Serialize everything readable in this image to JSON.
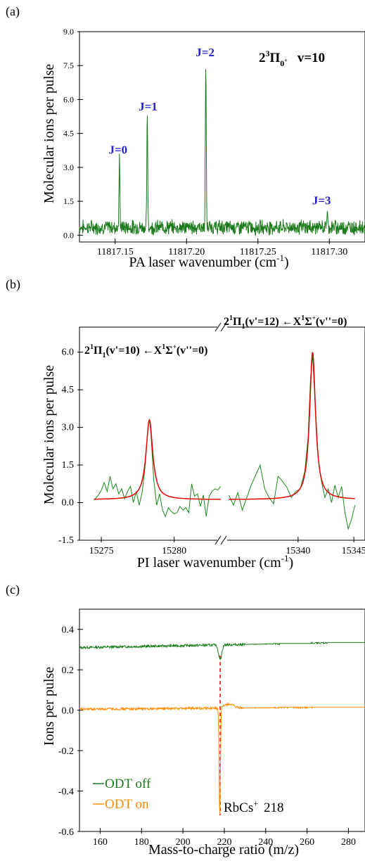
{
  "chart_data": [
    {
      "panel": "(a)",
      "type": "line",
      "annotation": {
        "main": "2",
        "sup": "3",
        "letter": "Π",
        "sub": "0",
        "subsup": "+",
        "tail": "v=10"
      },
      "xlabel": "PA laser wavenumber (cm",
      "xlabel_sup": "-1",
      "xlabel_end": ")",
      "ylabel": "Molecular ions per pulse",
      "xlim": [
        11817.125,
        11817.325
      ],
      "ylim": [
        -0.3,
        9.0
      ],
      "xticks": [
        "11817.15",
        "11817.20",
        "11817.25",
        "11817.30"
      ],
      "xtick_values": [
        11817.15,
        11817.2,
        11817.25,
        11817.3
      ],
      "yticks": [
        "0.0",
        "1.5",
        "3.0",
        "4.5",
        "6.0",
        "7.5",
        "9.0"
      ],
      "ytick_values": [
        0,
        1.5,
        3.0,
        4.5,
        6.0,
        7.5,
        9.0
      ],
      "baseline": 0.35,
      "peaks": [
        {
          "label": "J=0",
          "x": 11817.153,
          "height": 3.3
        },
        {
          "label": "J=1",
          "x": 11817.1725,
          "height": 5.2
        },
        {
          "label": "J=2",
          "x": 11817.2135,
          "height": 7.6
        },
        {
          "label": "J=3",
          "x": 11817.2985,
          "height": 1.05
        }
      ],
      "colors": {
        "trace": "#1a7a1a",
        "label": "#2222cc"
      }
    },
    {
      "panel": "(b)",
      "type": "line",
      "xlabel": "PI laser wavenumber (cm",
      "xlabel_sup": "-1",
      "xlabel_end": ")",
      "ylabel": "Molecular ions per pulse",
      "ylim": [
        -1.5,
        7.0
      ],
      "yticks": [
        "-1.5",
        "0.0",
        "1.5",
        "3.0",
        "4.5",
        "6.0"
      ],
      "ytick_values": [
        -1.5,
        0,
        1.5,
        3.0,
        4.5,
        6.0
      ],
      "segments": [
        {
          "xlim": [
            15273.5,
            15283.3
          ],
          "xticks": [
            "15275",
            "15280"
          ],
          "xtick_values": [
            15275,
            15280
          ],
          "peak_center": 15278.3,
          "peak_height": 3.3,
          "width": 0.28,
          "label": {
            "a": "2",
            "b": "1",
            "c": "Π",
            "d": "1",
            "e": "(v'=10) ←X",
            "f": "1",
            "g": "Σ",
            "h": "+",
            "i": "(v''=0)"
          },
          "data": [
            [
              15274.5,
              0.1
            ],
            [
              15274.8,
              0.3
            ],
            [
              15275.0,
              0.5
            ],
            [
              15275.2,
              0.8
            ],
            [
              15275.4,
              0.45
            ],
            [
              15275.6,
              1.05
            ],
            [
              15275.8,
              0.55
            ],
            [
              15276.0,
              0.75
            ],
            [
              15276.2,
              0.35
            ],
            [
              15276.4,
              0.55
            ],
            [
              15276.6,
              0.15
            ],
            [
              15276.8,
              0.45
            ],
            [
              15277.0,
              0.65
            ],
            [
              15277.2,
              0.0
            ],
            [
              15277.4,
              0.45
            ],
            [
              15277.6,
              -0.1
            ],
            [
              15277.8,
              0.4
            ],
            [
              15278.0,
              1.4
            ],
            [
              15278.2,
              3.0
            ],
            [
              15278.3,
              3.3
            ],
            [
              15278.4,
              2.8
            ],
            [
              15278.6,
              0.9
            ],
            [
              15278.8,
              -0.1
            ],
            [
              15279.0,
              0.35
            ],
            [
              15279.2,
              -0.3
            ],
            [
              15279.4,
              -0.55
            ],
            [
              15279.6,
              -0.2
            ],
            [
              15279.8,
              -0.35
            ],
            [
              15280.0,
              -0.45
            ],
            [
              15280.2,
              -0.4
            ],
            [
              15280.4,
              -0.15
            ],
            [
              15280.6,
              -0.3
            ],
            [
              15280.8,
              -0.2
            ],
            [
              15281.0,
              -0.4
            ],
            [
              15281.2,
              0.75
            ],
            [
              15281.4,
              0.25
            ],
            [
              15281.6,
              0.35
            ],
            [
              15281.8,
              -0.15
            ],
            [
              15282.0,
              0.3
            ],
            [
              15282.2,
              -0.55
            ],
            [
              15282.4,
              0.25
            ],
            [
              15282.6,
              0.45
            ],
            [
              15282.8,
              0.55
            ],
            [
              15283.0,
              0.5
            ],
            [
              15283.2,
              0.65
            ]
          ]
        },
        {
          "xlim": [
            15333.2,
            15346.0
          ],
          "xticks": [
            "15340",
            "15345"
          ],
          "xtick_values": [
            15340,
            15345
          ],
          "peak_center": 15341.3,
          "peak_height": 6.0,
          "width": 0.32,
          "label": {
            "a": "2",
            "b": "1",
            "c": "Π",
            "d": "1",
            "e": "(v'=12) ←X",
            "f": "1",
            "g": "Σ",
            "h": "+",
            "i": "(v''=0)"
          },
          "data": [
            [
              15333.8,
              0.3
            ],
            [
              15334.2,
              -0.1
            ],
            [
              15334.6,
              0.4
            ],
            [
              15335.0,
              -0.3
            ],
            [
              15335.4,
              0.2
            ],
            [
              15335.8,
              0.7
            ],
            [
              15336.2,
              1.1
            ],
            [
              15336.6,
              1.5
            ],
            [
              15337.0,
              0.55
            ],
            [
              15337.4,
              0.2
            ],
            [
              15337.8,
              -0.05
            ],
            [
              15338.2,
              1.05
            ],
            [
              15338.6,
              0.85
            ],
            [
              15339.0,
              0.6
            ],
            [
              15339.4,
              0.2
            ],
            [
              15339.8,
              0.45
            ],
            [
              15340.2,
              0.55
            ],
            [
              15340.6,
              1.25
            ],
            [
              15340.9,
              2.6
            ],
            [
              15341.1,
              4.8
            ],
            [
              15341.3,
              5.9
            ],
            [
              15341.5,
              4.2
            ],
            [
              15341.8,
              1.8
            ],
            [
              15342.1,
              0.85
            ],
            [
              15342.4,
              0.2
            ],
            [
              15342.7,
              0.55
            ],
            [
              15343.0,
              0.0
            ],
            [
              15343.3,
              0.7
            ],
            [
              15343.6,
              0.2
            ],
            [
              15343.9,
              0.65
            ],
            [
              15344.2,
              -0.4
            ],
            [
              15344.5,
              -1.05
            ],
            [
              15344.8,
              -0.65
            ],
            [
              15345.1,
              -0.1
            ]
          ]
        }
      ],
      "colors": {
        "trace": "#1a8a1a",
        "fit": "#e60000"
      }
    },
    {
      "panel": "(c)",
      "type": "line",
      "xlabel": "Mass-to-charge ratio (m/z)",
      "ylabel": "Ions per pulse",
      "xlim": [
        150,
        288
      ],
      "ylim": [
        -0.6,
        0.5
      ],
      "xticks": [
        "160",
        "180",
        "200",
        "220",
        "240",
        "260",
        "280"
      ],
      "xtick_values": [
        160,
        180,
        200,
        220,
        240,
        260,
        280
      ],
      "yticks": [
        "-0.6",
        "-0.4",
        "-0.2",
        "0.0",
        "0.2",
        "0.4"
      ],
      "ytick_values": [
        -0.6,
        -0.4,
        -0.2,
        0.0,
        0.2,
        0.4
      ],
      "annotation": {
        "text": "RbCs",
        "sup": "+",
        "value": "218"
      },
      "marker_x": 218,
      "series": [
        {
          "name": "ODT off",
          "baseline_start": 0.31,
          "baseline_end": 0.335,
          "dip_x": 218,
          "dip_depth": 0.07,
          "color": "#1a7a1a"
        },
        {
          "name": "ODT on",
          "baseline_start": 0.005,
          "baseline_end": 0.015,
          "dip_x": 217.8,
          "dip_depth": 0.53,
          "color": "#ff8c00"
        }
      ],
      "colors": {
        "marker": "#e60000"
      }
    }
  ]
}
